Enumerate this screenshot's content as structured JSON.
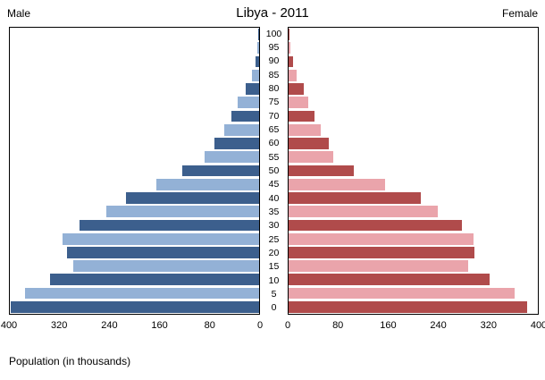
{
  "header": {
    "male_label": "Male",
    "female_label": "Female",
    "title": "Libya - 2011"
  },
  "footer": {
    "xlabel": "Population (in thousands)"
  },
  "colors": {
    "male_dark": "#3c5f8d",
    "male_light": "#93b1d6",
    "female_dark": "#b04b4b",
    "female_light": "#eaa4ab",
    "axis": "#000000"
  },
  "chart_data": {
    "type": "bar",
    "subtype": "population-pyramid",
    "title": "Libya - 2011",
    "xlabel": "Population (in thousands)",
    "legend": [
      "Male",
      "Female"
    ],
    "age_groups": [
      0,
      5,
      10,
      15,
      20,
      25,
      30,
      35,
      40,
      45,
      50,
      55,
      60,
      65,
      70,
      75,
      80,
      85,
      90,
      95,
      100
    ],
    "series": [
      {
        "name": "Male",
        "values": [
          398,
          375,
          335,
          298,
          308,
          315,
          288,
          245,
          213,
          165,
          123,
          88,
          72,
          56,
          45,
          35,
          22,
          12,
          6,
          3,
          1
        ]
      },
      {
        "name": "Female",
        "values": [
          383,
          363,
          323,
          288,
          298,
          297,
          278,
          240,
          212,
          155,
          105,
          72,
          65,
          52,
          42,
          32,
          25,
          13,
          7,
          3,
          1
        ]
      }
    ],
    "xlim": [
      0,
      400
    ],
    "ticks": [
      0,
      80,
      160,
      240,
      320,
      400
    ],
    "grid": false,
    "legend_position": "top-corners"
  }
}
